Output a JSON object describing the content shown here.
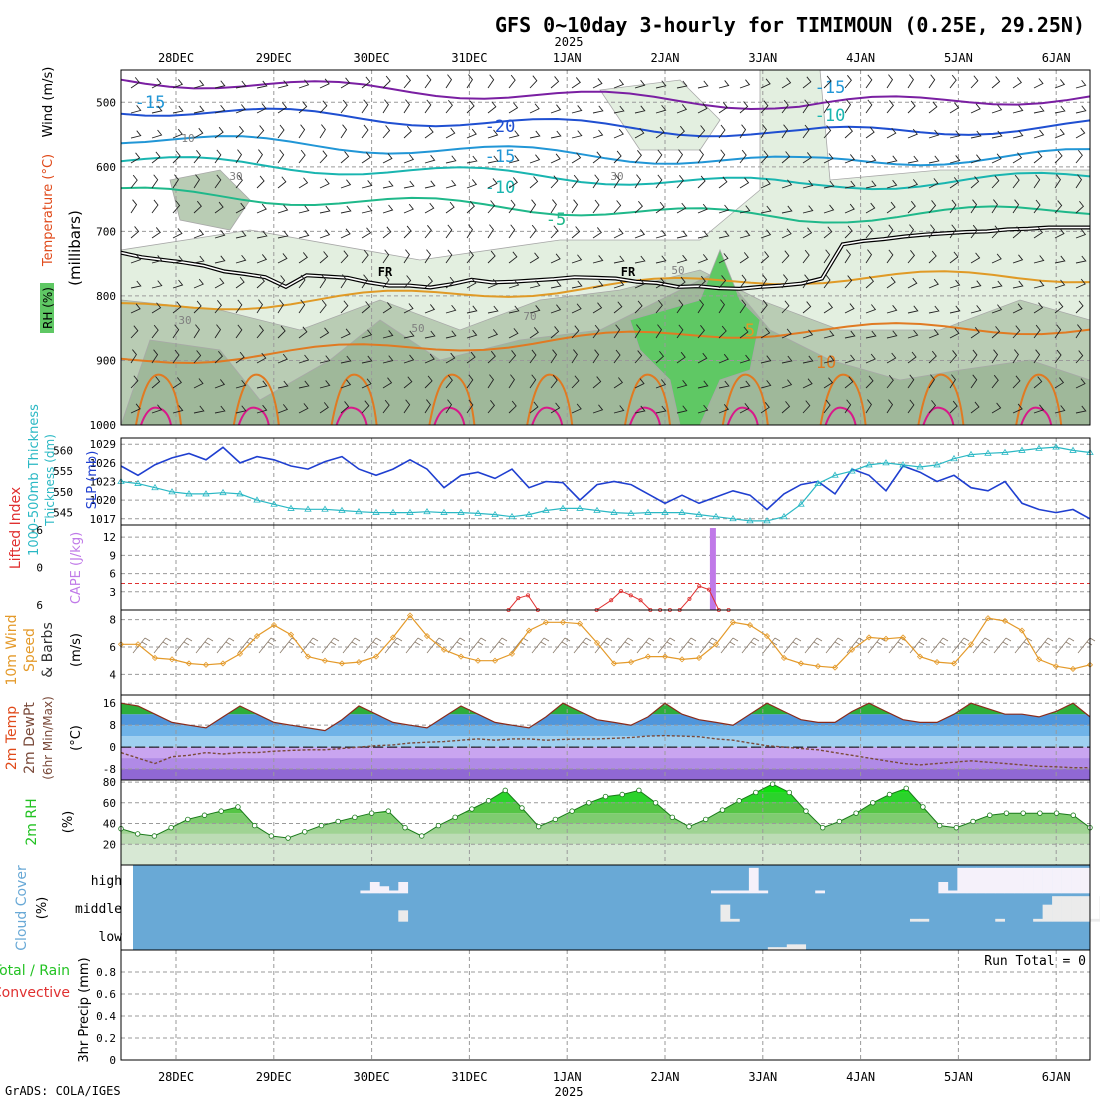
{
  "title": "GFS 0~10day 3-hourly for TIMIMOUN (0.25E, 29.25N)",
  "year_label": "2025",
  "credit": "GrADS: COLA/IGES",
  "colors": {
    "temp_cold": "#7a1fa2",
    "temp_m20": "#1f4fd1",
    "temp_m15": "#2196d6",
    "temp_m10": "#19b5b0",
    "temp_m5": "#1fb88a",
    "temp_warm5": "#e09a26",
    "temp_warm10": "#e07a22",
    "temp_15": "#d8198a",
    "rh_light": "#e3efe0",
    "rh_mid": "#b9ccb4",
    "rh_dark": "#9fb89a",
    "rh_green": "#5fc864",
    "slp": "#1f3fd0",
    "thickness": "#2ab8c4",
    "lifted": "#e03030",
    "cape": "#c07ae8",
    "wind10": "#e49a2a",
    "rh2m": "#22c222",
    "cloud": "#69a9d6",
    "rain": "#22c222",
    "conv": "#e03030"
  },
  "chart_data": [
    {
      "type": "contour",
      "panel": "upper-air",
      "ylabel_parts": [
        "Wind (m/s)",
        "Temperature (°C)",
        "RH (%)"
      ],
      "ylabel_units": "(millibars)",
      "y_axis_levels": [
        "500",
        "600",
        "700",
        "800",
        "900",
        "1000"
      ],
      "x_axis_days": [
        "28DEC",
        "29DEC",
        "30DEC",
        "31DEC",
        "1JAN",
        "2JAN",
        "3JAN",
        "4JAN",
        "5JAN",
        "6JAN"
      ],
      "freezing_label": "FR",
      "temperature_contour_labels": [
        "-15",
        "-20",
        "-15",
        "-10",
        "-5",
        "-15",
        "-10",
        "5",
        "10"
      ],
      "rh_contour_labels": [
        "30",
        "50",
        "70",
        "30",
        "50",
        "30",
        "10"
      ],
      "freezing_level_mb": [
        733,
        740,
        744,
        748,
        753,
        762,
        766,
        771,
        786,
        768,
        770,
        772,
        779,
        784,
        784,
        787,
        782,
        775,
        779,
        778,
        776,
        774,
        771,
        772,
        773,
        778,
        780,
        786,
        785,
        788,
        789,
        786,
        784,
        781,
        773,
        720,
        715,
        712,
        708,
        705,
        703,
        701,
        700,
        697,
        696,
        694,
        694,
        694
      ]
    },
    {
      "type": "line",
      "panel": "slp-thickness",
      "series": [
        {
          "name": "SLP (mb)",
          "axis": "right",
          "values": [
            1025.5,
            1024.0,
            1025.7,
            1026.8,
            1027.5,
            1026.5,
            1028.5,
            1026.0,
            1027.0,
            1026.5,
            1025.5,
            1025.0,
            1026.2,
            1027.0,
            1025.0,
            1024.0,
            1025.0,
            1026.5,
            1025.0,
            1022.0,
            1024.0,
            1024.5,
            1023.5,
            1025.0,
            1022.0,
            1023.0,
            1022.8,
            1020.0,
            1022.5,
            1023.0,
            1022.5,
            1021.0,
            1019.5,
            1020.8,
            1019.5,
            1020.5,
            1021.5,
            1020.8,
            1018.5,
            1021.0,
            1022.5,
            1023.0,
            1021.0,
            1025.0,
            1024.0,
            1021.5,
            1025.5,
            1024.5,
            1023.0,
            1024.0,
            1022.0,
            1021.5,
            1023.0,
            1019.5,
            1018.5,
            1018.0,
            1018.5,
            1017.0
          ]
        },
        {
          "name": "1000-500mb Thickness (dm)",
          "axis": "left",
          "values": [
            552.5,
            552.0,
            551.0,
            550.0,
            549.5,
            549.5,
            549.8,
            549.5,
            548.0,
            547.0,
            546.0,
            545.8,
            545.8,
            545.5,
            545.2,
            545.0,
            545.0,
            545.0,
            545.2,
            545.0,
            545.0,
            544.8,
            544.5,
            544.0,
            544.5,
            545.5,
            546.0,
            546.0,
            545.5,
            545.0,
            544.8,
            545.0,
            545.0,
            545.0,
            544.5,
            544.0,
            543.5,
            543.0,
            543.0,
            544.0,
            547.0,
            552.0,
            554.0,
            555.0,
            556.5,
            557.0,
            556.5,
            556.0,
            556.5,
            558.0,
            559.0,
            559.3,
            559.5,
            560.0,
            560.5,
            560.8,
            560.0,
            559.5
          ]
        }
      ],
      "left_ticks": [
        "545",
        "550",
        "555",
        "560"
      ],
      "right_ticks": [
        "1017",
        "1020",
        "1023",
        "1026",
        "1029"
      ],
      "ylim_left": [
        542,
        563
      ],
      "ylim_right": [
        1016,
        1030
      ]
    },
    {
      "type": "line+bar",
      "panel": "lifted-cape",
      "ylabel_lifted": "Lifted Index",
      "ylabel_cape": "CAPE (J/kg)",
      "lifted_ticks": [
        "6",
        "0",
        "-6"
      ],
      "cape_ticks": [
        "3",
        "6",
        "9",
        "12"
      ],
      "cape_peak_jkg": 13.5,
      "lifted_index_points": [
        [
          4.4,
          6
        ],
        [
          4.5,
          3.2
        ],
        [
          4.6,
          2.8
        ],
        [
          4.7,
          6
        ],
        [
          5.3,
          6
        ],
        [
          5.45,
          3.5
        ],
        [
          5.55,
          2.2
        ],
        [
          5.65,
          2.8
        ],
        [
          5.75,
          3.5
        ],
        [
          5.85,
          4.8
        ],
        [
          5.95,
          5.2
        ],
        [
          6.05,
          5.0
        ],
        [
          6.15,
          4.2
        ],
        [
          6.25,
          3.3
        ],
        [
          6.35,
          1.5
        ],
        [
          6.45,
          2.0
        ],
        [
          6.55,
          5.5
        ],
        [
          6.65,
          6
        ]
      ]
    },
    {
      "type": "line",
      "panel": "wind10m",
      "ylabel": "10m Wind Speed & Barbs",
      "units": "(m/s)",
      "ticks": [
        "4",
        "6",
        "8"
      ],
      "ylim": [
        2.5,
        8.7
      ],
      "values": [
        6.2,
        6.2,
        5.2,
        5.1,
        4.8,
        4.7,
        4.8,
        5.5,
        6.8,
        7.6,
        6.9,
        5.3,
        5.0,
        4.8,
        4.9,
        5.3,
        6.7,
        8.3,
        6.8,
        5.8,
        5.3,
        5.0,
        5.0,
        5.5,
        7.2,
        7.8,
        7.8,
        7.7,
        6.3,
        4.8,
        4.9,
        5.3,
        5.3,
        5.1,
        5.2,
        6.2,
        7.8,
        7.6,
        6.8,
        5.2,
        4.8,
        4.6,
        4.5,
        5.8,
        6.7,
        6.6,
        6.7,
        5.3,
        4.9,
        4.8,
        6.2,
        8.1,
        7.9,
        7.2,
        5.1,
        4.6,
        4.4,
        4.7
      ]
    },
    {
      "type": "area",
      "panel": "temp2m",
      "ylabel_lines": [
        "2m Temp",
        "2m DewPt",
        "(6hr Min/Max)"
      ],
      "units": "(°C)",
      "ticks": [
        "-8",
        "0",
        "8",
        "16"
      ],
      "ylim": [
        -12,
        19
      ],
      "temp_values": [
        16,
        15,
        12,
        9,
        8,
        7,
        11,
        15,
        12,
        9,
        8,
        7,
        6,
        10,
        15,
        12,
        9,
        8,
        7,
        11,
        15,
        12,
        9,
        8,
        7,
        11,
        16,
        13,
        10,
        9,
        8,
        11,
        16,
        12,
        10,
        9,
        8,
        12,
        16,
        13,
        10,
        9,
        9,
        13,
        16,
        13,
        10,
        9,
        9,
        12,
        16,
        14,
        12,
        12,
        11,
        13,
        16,
        11
      ],
      "dewpt_values": [
        -2,
        -4,
        -6,
        -3.5,
        -3,
        -2,
        -2.5,
        -2,
        -2,
        -1.5,
        -1.2,
        -1,
        -1,
        -0.5,
        0,
        0.5,
        0.8,
        1.5,
        1.8,
        2,
        2.5,
        3,
        2.5,
        3,
        3,
        2.5,
        2.8,
        3,
        3,
        3.2,
        3.5,
        4,
        4.2,
        4,
        3.8,
        3,
        2.5,
        1.5,
        0.5,
        0,
        -0.5,
        -1,
        -2,
        -3,
        -4,
        -5,
        -6,
        -6.5,
        -6,
        -5.5,
        -5,
        -5.5,
        -6,
        -6.5,
        -7,
        -7.2,
        -7.5,
        -7.5
      ]
    },
    {
      "type": "area",
      "panel": "rh2m",
      "ylabel": "2m RH",
      "units": "(%)",
      "ticks": [
        "20",
        "40",
        "60",
        "80"
      ],
      "ylim": [
        0,
        82
      ],
      "values": [
        35,
        30,
        28,
        36,
        44,
        48,
        52,
        56,
        38,
        28,
        26,
        32,
        38,
        42,
        46,
        50,
        52,
        36,
        28,
        38,
        46,
        54,
        62,
        72,
        55,
        37,
        44,
        52,
        60,
        66,
        68,
        72,
        60,
        46,
        37,
        44,
        53,
        62,
        70,
        78,
        70,
        52,
        36,
        42,
        50,
        60,
        68,
        74,
        56,
        38,
        36,
        42,
        48,
        50,
        50,
        50,
        50,
        48,
        36
      ]
    },
    {
      "type": "bar",
      "panel": "cloud",
      "ylabel": "Cloud Cover",
      "units": "(%)",
      "levels": [
        "high",
        "middle",
        "low"
      ],
      "high_values": [
        0,
        0,
        0,
        0,
        0,
        0,
        0,
        0,
        0,
        0,
        0,
        0,
        0,
        0,
        0,
        0,
        0,
        0,
        0,
        0,
        0,
        0,
        0,
        0,
        10,
        40,
        25,
        10,
        40,
        0,
        0,
        0,
        0,
        0,
        0,
        0,
        0,
        0,
        0,
        0,
        0,
        0,
        0,
        0,
        0,
        0,
        0,
        0,
        0,
        0,
        0,
        0,
        0,
        0,
        0,
        0,
        0,
        0,
        0,
        0,
        0,
        10,
        10,
        10,
        10,
        90,
        10,
        0,
        0,
        0,
        0,
        0,
        10,
        0,
        0,
        0,
        0,
        0,
        0,
        0,
        0,
        0,
        0,
        0,
        0,
        40,
        10,
        90,
        90,
        90,
        90,
        90,
        90,
        90,
        90,
        90,
        90,
        90,
        90,
        90,
        90
      ],
      "middle_values": [
        0,
        0,
        0,
        0,
        0,
        0,
        0,
        0,
        0,
        0,
        0,
        0,
        0,
        0,
        0,
        0,
        0,
        0,
        0,
        0,
        0,
        0,
        0,
        0,
        0,
        0,
        0,
        0,
        40,
        0,
        0,
        0,
        0,
        0,
        0,
        0,
        0,
        0,
        0,
        0,
        0,
        0,
        0,
        0,
        0,
        0,
        0,
        0,
        0,
        0,
        0,
        0,
        0,
        0,
        0,
        0,
        0,
        0,
        0,
        0,
        0,
        0,
        60,
        10,
        0,
        0,
        0,
        0,
        0,
        0,
        0,
        0,
        0,
        0,
        0,
        0,
        0,
        0,
        0,
        0,
        0,
        0,
        10,
        10,
        0,
        0,
        0,
        0,
        0,
        0,
        0,
        10,
        0,
        0,
        0,
        10,
        60,
        90,
        90,
        90,
        90,
        10,
        90,
        90,
        10
      ],
      "low_values": [
        0,
        0,
        0,
        0,
        0,
        0,
        0,
        0,
        0,
        0,
        0,
        0,
        0,
        0,
        0,
        0,
        0,
        0,
        0,
        0,
        0,
        0,
        0,
        0,
        0,
        0,
        0,
        0,
        0,
        0,
        0,
        0,
        0,
        0,
        0,
        0,
        0,
        0,
        0,
        0,
        0,
        0,
        0,
        0,
        0,
        0,
        0,
        0,
        0,
        0,
        0,
        0,
        0,
        0,
        0,
        0,
        0,
        0,
        0,
        0,
        0,
        0,
        0,
        0,
        0,
        0,
        0,
        10,
        10,
        20,
        20,
        0,
        0,
        0,
        0,
        0,
        0,
        0,
        0,
        0,
        0,
        0,
        0,
        0,
        0,
        0,
        0,
        0,
        0,
        0,
        0,
        0,
        0,
        0,
        0,
        0,
        0,
        0,
        0,
        0,
        0,
        0,
        0,
        0,
        0
      ]
    },
    {
      "type": "bar",
      "panel": "precip",
      "ylabel_total": "Total / Rain",
      "ylabel_conv": "Convective",
      "ylabel": "3hr Precip (mm)",
      "ticks": [
        "0",
        "0.2",
        "0.4",
        "0.6",
        "0.8"
      ],
      "ylim": [
        0,
        1
      ],
      "run_total": "Run Total = 0",
      "values": []
    }
  ]
}
